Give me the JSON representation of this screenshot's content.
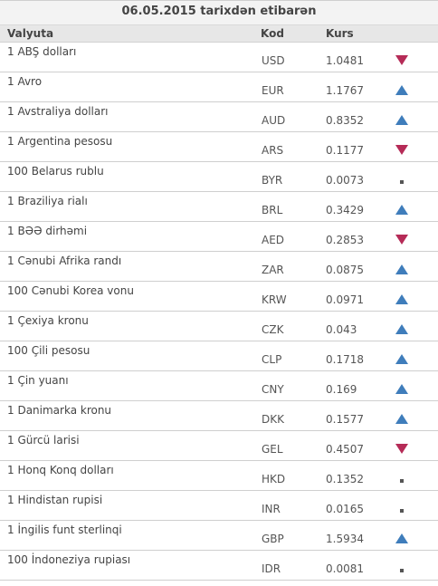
{
  "table": {
    "title": "06.05.2015 tarixdən etibarən",
    "headers": {
      "name": "Valyuta",
      "code": "Kod",
      "rate": "Kurs"
    },
    "rows": [
      {
        "name": "1 ABŞ dolları",
        "code": "USD",
        "rate": "1.0481",
        "trend": "down"
      },
      {
        "name": "1 Avro",
        "code": "EUR",
        "rate": "1.1767",
        "trend": "up"
      },
      {
        "name": "1 Avstraliya dolları",
        "code": "AUD",
        "rate": "0.8352",
        "trend": "up"
      },
      {
        "name": "1 Argentina pesosu",
        "code": "ARS",
        "rate": "0.1177",
        "trend": "down"
      },
      {
        "name": "100 Belarus rublu",
        "code": "BYR",
        "rate": "0.0073",
        "trend": "same"
      },
      {
        "name": "1 Braziliya rialı",
        "code": "BRL",
        "rate": "0.3429",
        "trend": "up"
      },
      {
        "name": "1 BƏƏ dirhəmi",
        "code": "AED",
        "rate": "0.2853",
        "trend": "down"
      },
      {
        "name": "1 Cənubi Afrika randı",
        "code": "ZAR",
        "rate": "0.0875",
        "trend": "up"
      },
      {
        "name": "100 Cənubi Korea vonu",
        "code": "KRW",
        "rate": "0.0971",
        "trend": "up"
      },
      {
        "name": "1 Çexiya kronu",
        "code": "CZK",
        "rate": "0.043",
        "trend": "up"
      },
      {
        "name": "100 Çili pesosu",
        "code": "CLP",
        "rate": "0.1718",
        "trend": "up"
      },
      {
        "name": "1 Çin yuanı",
        "code": "CNY",
        "rate": "0.169",
        "trend": "up"
      },
      {
        "name": "1 Danimarka kronu",
        "code": "DKK",
        "rate": "0.1577",
        "trend": "up"
      },
      {
        "name": "1 Gürcü larisi",
        "code": "GEL",
        "rate": "0.4507",
        "trend": "down"
      },
      {
        "name": "1 Honq Konq dolları",
        "code": "HKD",
        "rate": "0.1352",
        "trend": "same"
      },
      {
        "name": "1 Hindistan rupisi",
        "code": "INR",
        "rate": "0.0165",
        "trend": "same"
      },
      {
        "name": "1 İngilis funt sterlinqi",
        "code": "GBP",
        "rate": "1.5934",
        "trend": "up"
      },
      {
        "name": "100 İndoneziya rupiası",
        "code": "IDR",
        "rate": "0.0081",
        "trend": "same"
      }
    ]
  },
  "colors": {
    "up": "#3f7dbb",
    "down": "#b52b57",
    "same": "#555555"
  },
  "icons": {
    "up": "triangle-up-icon",
    "down": "triangle-down-icon",
    "same": "square-dot-icon"
  }
}
